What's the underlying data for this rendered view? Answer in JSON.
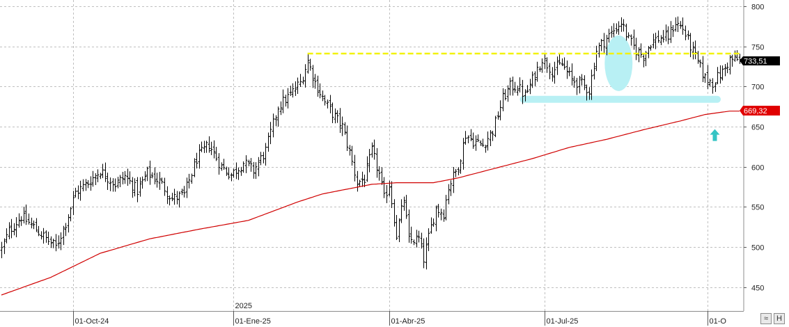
{
  "chart_data": {
    "type": "ohlc",
    "yticks": [
      450,
      500,
      550,
      600,
      650,
      700,
      750,
      800
    ],
    "ylim": [
      420,
      805
    ],
    "xticks": [
      {
        "label": "01-Oct-24",
        "index": 29
      },
      {
        "label": "01-Ene-25",
        "index": 94
      },
      {
        "label": "01-Abr-25",
        "index": 157
      },
      {
        "label": "01-Jul-25",
        "index": 220
      },
      {
        "label": "01-O",
        "index": 286
      }
    ],
    "year_label": "2025",
    "year_index": 94,
    "n_bars": 300,
    "close_anchors": [
      [
        0,
        497
      ],
      [
        3,
        520
      ],
      [
        8,
        538
      ],
      [
        13,
        525
      ],
      [
        18,
        510
      ],
      [
        22,
        500
      ],
      [
        26,
        530
      ],
      [
        30,
        568
      ],
      [
        35,
        580
      ],
      [
        40,
        595
      ],
      [
        46,
        578
      ],
      [
        50,
        588
      ],
      [
        55,
        570
      ],
      [
        59,
        592
      ],
      [
        64,
        582
      ],
      [
        69,
        560
      ],
      [
        74,
        565
      ],
      [
        79,
        610
      ],
      [
        84,
        628
      ],
      [
        89,
        600
      ],
      [
        93,
        590
      ],
      [
        98,
        605
      ],
      [
        102,
        595
      ],
      [
        107,
        620
      ],
      [
        112,
        675
      ],
      [
        117,
        690
      ],
      [
        121,
        705
      ],
      [
        124,
        732
      ],
      [
        127,
        705
      ],
      [
        131,
        680
      ],
      [
        135,
        662
      ],
      [
        138,
        650
      ],
      [
        141,
        618
      ],
      [
        144,
        580
      ],
      [
        147,
        585
      ],
      [
        150,
        620
      ],
      [
        153,
        590
      ],
      [
        155,
        560
      ],
      [
        157,
        578
      ],
      [
        160,
        515
      ],
      [
        163,
        560
      ],
      [
        165,
        508
      ],
      [
        169,
        510
      ],
      [
        171,
        485
      ],
      [
        174,
        525
      ],
      [
        176,
        548
      ],
      [
        179,
        542
      ],
      [
        181,
        575
      ],
      [
        185,
        600
      ],
      [
        188,
        640
      ],
      [
        191,
        632
      ],
      [
        195,
        627
      ],
      [
        199,
        645
      ],
      [
        203,
        685
      ],
      [
        206,
        700
      ],
      [
        209,
        700
      ],
      [
        212,
        688
      ],
      [
        216,
        715
      ],
      [
        219,
        735
      ],
      [
        223,
        720
      ],
      [
        227,
        728
      ],
      [
        231,
        708
      ],
      [
        235,
        703
      ],
      [
        238,
        695
      ],
      [
        241,
        745
      ],
      [
        245,
        760
      ],
      [
        248,
        770
      ],
      [
        251,
        780
      ],
      [
        254,
        758
      ],
      [
        257,
        745
      ],
      [
        260,
        738
      ],
      [
        263,
        755
      ],
      [
        266,
        760
      ],
      [
        270,
        762
      ],
      [
        273,
        780
      ],
      [
        276,
        772
      ],
      [
        279,
        750
      ],
      [
        282,
        730
      ],
      [
        285,
        710
      ],
      [
        288,
        705
      ],
      [
        292,
        718
      ],
      [
        295,
        733.51
      ]
    ],
    "close": 733.51,
    "ma_last": 669.32,
    "ma_anchors": [
      [
        0,
        440
      ],
      [
        20,
        462
      ],
      [
        40,
        492
      ],
      [
        60,
        510
      ],
      [
        80,
        522
      ],
      [
        100,
        533
      ],
      [
        120,
        556
      ],
      [
        130,
        566
      ],
      [
        140,
        572
      ],
      [
        150,
        578
      ],
      [
        160,
        580
      ],
      [
        175,
        580
      ],
      [
        185,
        586
      ],
      [
        200,
        598
      ],
      [
        215,
        610
      ],
      [
        230,
        624
      ],
      [
        245,
        634
      ],
      [
        260,
        646
      ],
      [
        275,
        657
      ],
      [
        285,
        665
      ],
      [
        295,
        669.32
      ]
    ],
    "resistance_level": 741,
    "resistance_from_index": 124,
    "support_level": 684,
    "support_from_index": 210,
    "ellipse_center": [
      250,
      729
    ],
    "arrow_index": 289,
    "arrow_value": 639,
    "colors": {
      "bars": "#000000",
      "moving_average": "#d00000",
      "resistance": "#f2f20a",
      "highlight": "#b8f0f4",
      "arrow": "#35c4c4",
      "grid": "#bfbfbf",
      "price_tag": "#000000",
      "ma_tag": "#e00000"
    }
  },
  "price_tags": {
    "close": "733,51",
    "ma": "669,32"
  },
  "controls": {
    "zoom_icon": "zoom-icon",
    "hold_icon": "hold-icon"
  }
}
